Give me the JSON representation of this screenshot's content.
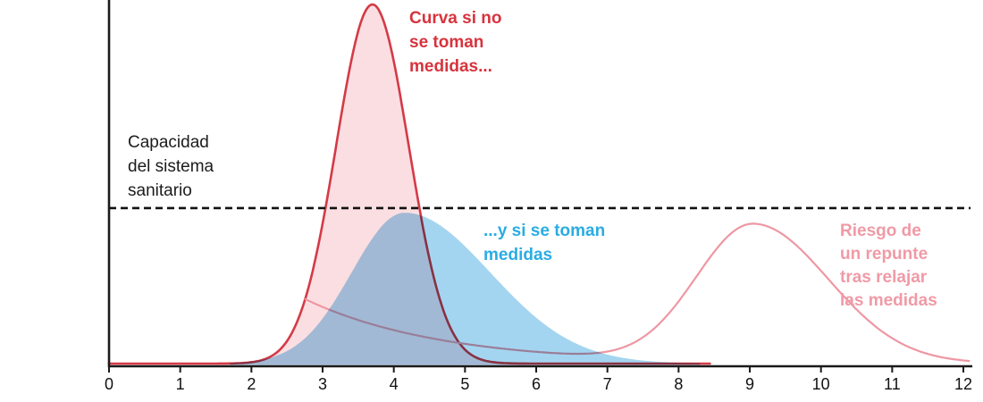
{
  "figure": {
    "background": "#ffffff",
    "axis_color": "#1a1a1a"
  },
  "annotations": {
    "capacity": {
      "text": "Capacidad\ndel sistema\nsanitario",
      "color": "#1c1c1c"
    },
    "no_measures": {
      "text": "Curva si no\nse toman\nmedidas...",
      "color": "#d7333d"
    },
    "with_measures": {
      "text": "...y si se toman\nmedidas",
      "color": "#2aace3"
    },
    "rebound": {
      "text": "Riesgo de\nun repunte\ntras relajar\nlas medidas",
      "color": "#f09aa6"
    }
  },
  "chart_data": {
    "type": "area",
    "title": "",
    "xlabel": "",
    "ylabel": "",
    "x_range": [
      0,
      12
    ],
    "x_ticks": [
      "0",
      "1",
      "2",
      "3",
      "4",
      "5",
      "6",
      "7",
      "8",
      "9",
      "10",
      "11",
      "12"
    ],
    "grid": false,
    "y_axis_labels": false,
    "capacity_line": {
      "label": "Capacidad del sistema sanitario",
      "level": 0.433,
      "style": "dashed",
      "color": "#111111"
    },
    "series": [
      {
        "name": "no-measures",
        "label": "Curva si no se toman medidas...",
        "stroke": "#d43a46",
        "fill": "#fbdee2",
        "x_range": [
          0,
          8.45
        ],
        "peak_x": 3.7,
        "peak_height": 1.0,
        "exceeds_capacity": true,
        "components": [
          {
            "type": "gauss",
            "peak_x": 3.7,
            "h": 1.0,
            "sigma_l": 0.51,
            "sigma_r": 0.51
          }
        ]
      },
      {
        "name": "with-measures",
        "label": "...y si se toman medidas",
        "stroke": "none",
        "fill": "#a4d5f0",
        "x_range": [
          1.7,
          8.3
        ],
        "peak_x": 4.15,
        "peak_height": 0.42,
        "exceeds_capacity": false,
        "components": [
          {
            "type": "gauss",
            "peak_x": 4.15,
            "h": 0.42,
            "sigma_l": 0.74,
            "sigma_r": 1.2
          }
        ]
      },
      {
        "name": "rebound",
        "label": "Riesgo de un repunte tras relajar las medidas",
        "stroke": "#ee97a3",
        "fill": "none",
        "x_range": [
          2.76,
          12.08
        ],
        "peak_x": 9.05,
        "peak_height": 0.383,
        "exceeds_capacity": false,
        "components": [
          {
            "type": "decay",
            "start_x": 2.76,
            "h": 0.179,
            "k": 1.9
          },
          {
            "type": "gauss",
            "peak_x": 9.05,
            "h": 0.383,
            "sigma_l": 0.8,
            "sigma_r": 1.05
          }
        ]
      }
    ]
  }
}
